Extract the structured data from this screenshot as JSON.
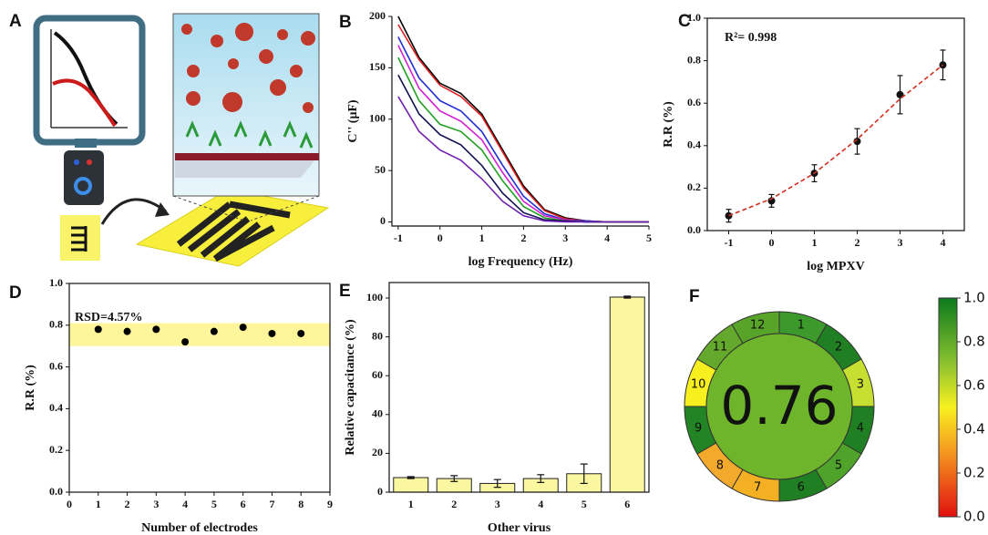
{
  "panel_a": {
    "label": "A"
  },
  "chart_data": [
    {
      "type": "line",
      "label": "B",
      "xlabel": "log Frequency (Hz)",
      "ylabel": "C'' (μF)",
      "x": [
        -1,
        -0.5,
        0,
        0.5,
        1,
        1.5,
        2,
        2.5,
        3,
        3.5,
        4,
        4.5,
        5
      ],
      "xlim": [
        -1.15,
        5
      ],
      "xticks": [
        -1,
        0,
        1,
        2,
        3,
        4,
        5
      ],
      "ylim": [
        -4,
        200
      ],
      "yticks": [
        0,
        50,
        100,
        150,
        200
      ],
      "series": [
        {
          "color": "#000000",
          "values": [
            200,
            160,
            135,
            125,
            105,
            70,
            35,
            12,
            4,
            1,
            0,
            0,
            0
          ]
        },
        {
          "color": "#e02020",
          "values": [
            192,
            158,
            133,
            122,
            103,
            68,
            33,
            11,
            3,
            1,
            0,
            0,
            0
          ]
        },
        {
          "color": "#2030d0",
          "values": [
            180,
            140,
            118,
            108,
            88,
            55,
            25,
            8,
            2,
            1,
            0,
            0,
            0
          ]
        },
        {
          "color": "#d020d0",
          "values": [
            172,
            130,
            108,
            98,
            80,
            48,
            20,
            6,
            2,
            0,
            0,
            0,
            0
          ]
        },
        {
          "color": "#20a020",
          "values": [
            160,
            118,
            95,
            88,
            70,
            40,
            15,
            4,
            1,
            0,
            0,
            0,
            0
          ]
        },
        {
          "color": "#101050",
          "values": [
            143,
            105,
            85,
            75,
            55,
            28,
            9,
            2,
            1,
            0,
            0,
            0,
            0
          ]
        },
        {
          "color": "#7020b0",
          "values": [
            122,
            88,
            70,
            60,
            42,
            20,
            6,
            1,
            0,
            0,
            0,
            0,
            0
          ]
        }
      ]
    },
    {
      "type": "scatter",
      "label": "C",
      "xlabel": "log MPXV",
      "ylabel": "R.R (%)",
      "annotation": "R²= 0.998",
      "x": [
        -1,
        0,
        1,
        2,
        3,
        4
      ],
      "xlim": [
        -1.5,
        4.5
      ],
      "xticks": [
        -1,
        0,
        1,
        2,
        3,
        4
      ],
      "ylim": [
        0,
        1
      ],
      "yticks": [
        {
          "value": 0,
          "label": "0.0"
        },
        {
          "value": 0.2,
          "label": "0.2"
        },
        {
          "value": 0.4,
          "label": "0.4"
        },
        {
          "value": 0.6,
          "label": "0.6"
        },
        {
          "value": 0.8,
          "label": "0.8"
        },
        {
          "value": 1,
          "label": "1.0"
        }
      ],
      "series": [
        {
          "color": "#111111",
          "values": [
            0.07,
            0.14,
            0.27,
            0.42,
            0.64,
            0.78
          ],
          "errors": [
            0.03,
            0.03,
            0.04,
            0.06,
            0.09,
            0.07
          ]
        },
        {
          "color": "#d03020",
          "line_style": "dashed",
          "values": [
            0.07,
            0.15,
            0.27,
            0.43,
            0.62,
            0.78
          ]
        }
      ]
    },
    {
      "type": "scatter",
      "label": "D",
      "xlabel": "Number of electrodes",
      "ylabel": "R.R (%)",
      "annotation": "RSD=4.57%",
      "x": [
        1,
        2,
        3,
        4,
        5,
        6,
        7,
        8
      ],
      "xlim": [
        0,
        9
      ],
      "xticks": [
        0,
        1,
        2,
        3,
        4,
        5,
        6,
        7,
        8,
        9
      ],
      "ylim": [
        0,
        1
      ],
      "yticks": [
        {
          "value": 0,
          "label": "0.0"
        },
        {
          "value": 0.2,
          "label": "0.2"
        },
        {
          "value": 0.4,
          "label": "0.4"
        },
        {
          "value": 0.6,
          "label": "0.6"
        },
        {
          "value": 0.8,
          "label": "0.8"
        },
        {
          "value": 1,
          "label": "1.0"
        }
      ],
      "band": [
        0.7,
        0.81
      ],
      "band_color": "#fff59a",
      "series": [
        {
          "color": "#000000",
          "values": [
            0.78,
            0.77,
            0.78,
            0.72,
            0.77,
            0.79,
            0.76,
            0.76
          ]
        }
      ]
    },
    {
      "type": "bar",
      "label": "E",
      "xlabel": "Other virus",
      "ylabel": "Relative capacitance (%)",
      "categories": [
        "1",
        "2",
        "3",
        "4",
        "5",
        "6"
      ],
      "values": [
        7.5,
        7,
        4.5,
        7,
        9.5,
        100.5
      ],
      "errors": [
        0.5,
        1.5,
        2,
        2,
        5,
        0.5
      ],
      "color": "#fbf7a0",
      "ylim": [
        0,
        108
      ],
      "yticks": [
        0,
        20,
        40,
        60,
        80,
        100
      ]
    },
    {
      "type": "donut",
      "label": "F",
      "score": 0.76,
      "center_color": "#6fb52c",
      "categories": [
        "1",
        "2",
        "3",
        "4",
        "5",
        "6",
        "7",
        "8",
        "9",
        "10",
        "11",
        "12"
      ],
      "colors": [
        "#3c9a2c",
        "#1f7f22",
        "#c6df30",
        "#1f7f22",
        "#4fa22a",
        "#1f7f22",
        "#f4b023",
        "#f3a92c",
        "#238425",
        "#f8ef1f",
        "#64a92b",
        "#58a42a"
      ],
      "ylim": [
        0,
        1
      ],
      "yticks": [
        {
          "value": 0,
          "label": "0.0"
        },
        {
          "value": 0.2,
          "label": "0.2"
        },
        {
          "value": 0.4,
          "label": "0.4"
        },
        {
          "value": 0.6,
          "label": "0.6"
        },
        {
          "value": 0.8,
          "label": "0.8"
        },
        {
          "value": 1,
          "label": "1.0"
        }
      ]
    }
  ]
}
